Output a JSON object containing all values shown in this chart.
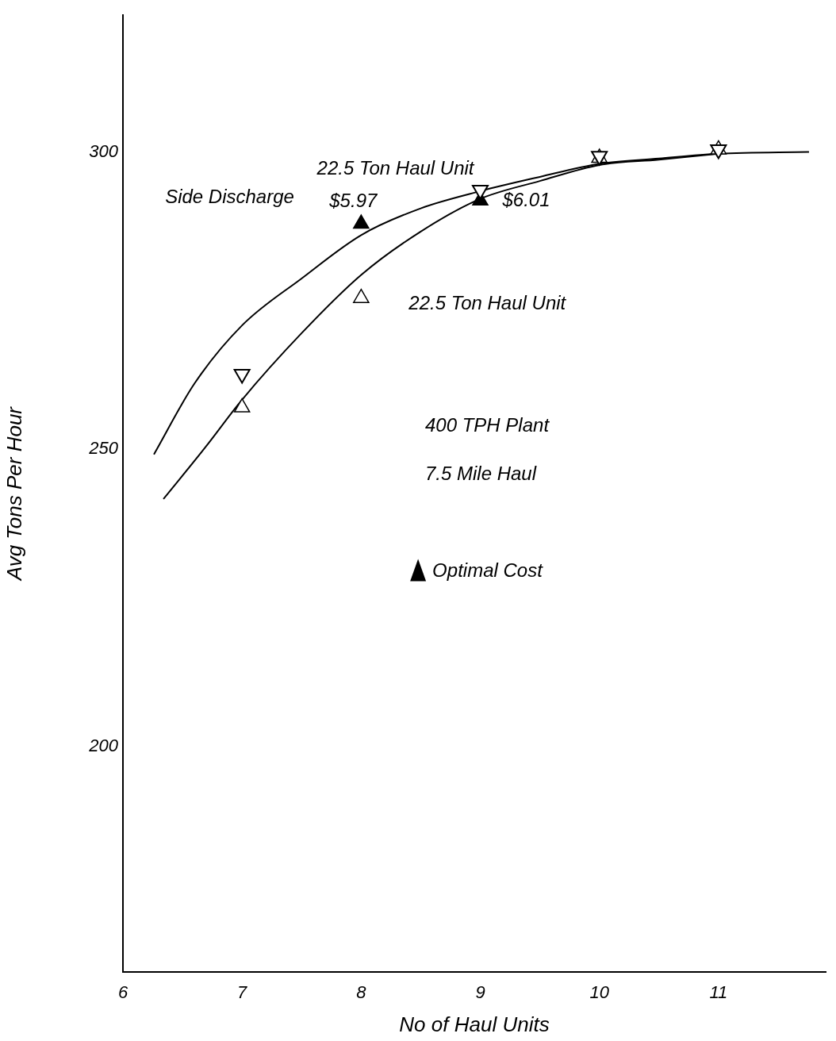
{
  "chart_data": {
    "type": "scatter",
    "xlabel": "No of Haul Units",
    "ylabel": "Avg Tons Per Hour",
    "xlim": [
      6,
      11.9
    ],
    "xticks": [
      6,
      7,
      8,
      9,
      10,
      11
    ],
    "ylim": [
      162,
      323
    ],
    "yticks": [
      200,
      250,
      300
    ],
    "grid": false,
    "marker": "triangle",
    "legend": "center",
    "series": [
      {
        "name": "22.5 Ton Haul Unit",
        "color": "#000000",
        "x": [
          7,
          9,
          10,
          11
        ],
        "values": [
          262.6,
          293.6,
          299.3,
          300.4
        ]
      },
      {
        "name": "22.5 Ton Haul Unit",
        "color": "#000000",
        "x": [
          7,
          8,
          10,
          11
        ],
        "values": [
          257,
          275.4,
          299,
          300.4
        ]
      },
      {
        "name": "Optimal Cost",
        "color": "#000000",
        "x": [
          8,
          9
        ],
        "values": [
          287.9,
          291.8
        ]
      },
      {
        "type": "line",
        "marker": "none",
        "color": "#000000",
        "x": [
          6.26,
          6.6,
          7,
          7.5,
          8,
          8.5,
          9,
          9.5,
          10,
          10.5,
          11,
          11.76
        ],
        "values": [
          249.1,
          261,
          270.8,
          278.7,
          286,
          290.5,
          293.4,
          295.8,
          298,
          298.9,
          299.7,
          300
        ]
      },
      {
        "type": "line",
        "marker": "none",
        "color": "#000000",
        "x": [
          6.34,
          6.7,
          7,
          7.5,
          8,
          8.5,
          9,
          9.5,
          10,
          10.5,
          11
        ],
        "values": [
          241.6,
          250.5,
          258.3,
          269.5,
          279.3,
          286.6,
          292.1,
          295.1,
          297.8,
          298.7,
          299.7
        ]
      }
    ],
    "annotations": [
      "Side Discharge",
      "400 TPH Plant",
      "7.5 Mile Haul",
      {
        "text": "$5.97",
        "x": 8,
        "y": 287.9
      },
      {
        "text": "$6.01",
        "x": 9,
        "y": 291.8
      }
    ]
  }
}
